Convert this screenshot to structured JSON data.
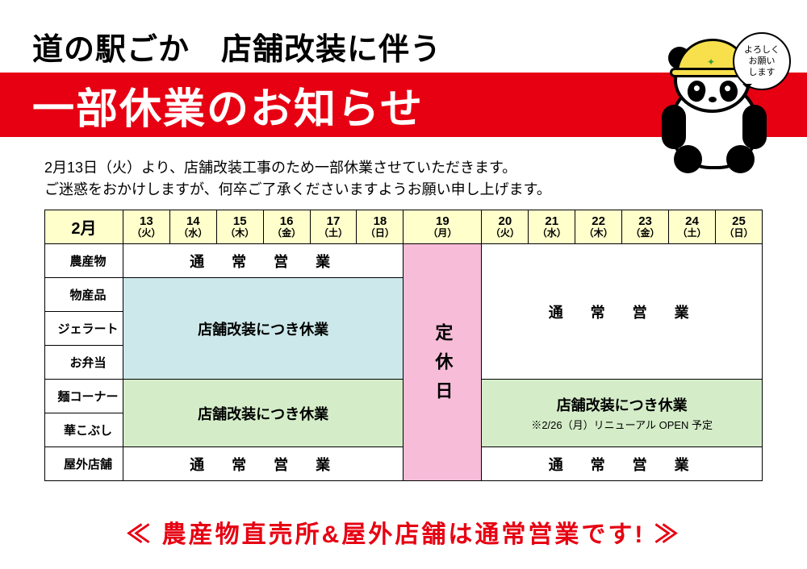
{
  "title_line1": "道の駅ごか　店舗改装に伴う",
  "banner_text": "一部休業のお知らせ",
  "description_line1": "2月13日（火）より、店舗改装工事のため一部休業させていただきます。",
  "description_line2": "ご迷惑をおかけしますが、何卒ご了承くださいますようお願い申し上げます。",
  "speech_bubble": "よろしく\nお願い\nします",
  "month_label": "2月",
  "days": [
    {
      "num": "13",
      "wday": "（火）"
    },
    {
      "num": "14",
      "wday": "（水）"
    },
    {
      "num": "15",
      "wday": "（木）"
    },
    {
      "num": "16",
      "wday": "（金）"
    },
    {
      "num": "17",
      "wday": "（土）"
    },
    {
      "num": "18",
      "wday": "（日）"
    },
    {
      "num": "19",
      "wday": "（月）"
    },
    {
      "num": "20",
      "wday": "（火）"
    },
    {
      "num": "21",
      "wday": "（水）"
    },
    {
      "num": "22",
      "wday": "（木）"
    },
    {
      "num": "23",
      "wday": "（金）"
    },
    {
      "num": "24",
      "wday": "（土）"
    },
    {
      "num": "25",
      "wday": "（日）"
    }
  ],
  "row_labels": [
    "農産物",
    "物産品",
    "ジェラート",
    "お弁当",
    "麺コーナー",
    "華こぶし",
    "屋外店舗"
  ],
  "normal_biz_text": "通　常　営　業",
  "closed_renov_text": "店舗改装につき休業",
  "regular_holiday_text": "定休日",
  "green_sub_text": "※2/26（月）リニューアル OPEN 予定",
  "footer_text": "≪ 農産物直売所&屋外店舗は通常営業です! ≫",
  "colors": {
    "red": "#e60012",
    "header_bg": "#ffffcc",
    "blue_bg": "#cce8ea",
    "green_bg": "#d4edc8",
    "pink_bg": "#f7bdd8",
    "helmet": "#f7e04b"
  },
  "table": {
    "left_block_cols": 6,
    "right_block_cols": 6
  }
}
